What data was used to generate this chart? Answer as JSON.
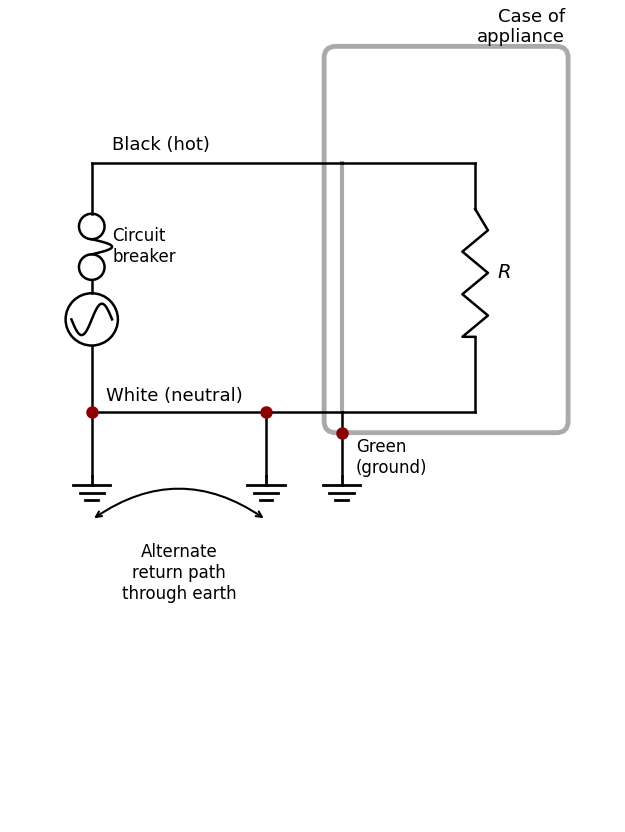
{
  "background_color": "#ffffff",
  "line_color": "#000000",
  "gray_color": "#aaaaaa",
  "dot_color": "#8B0000",
  "text_color": "#000000",
  "case_label": "Case of\nappliance",
  "black_hot_label": "Black (hot)",
  "white_neutral_label": "White (neutral)",
  "circuit_breaker_label": "Circuit\nbreaker",
  "green_ground_label": "Green\n(ground)",
  "alternate_label": "Alternate\nreturn path\nthrough earth",
  "R_label": "R",
  "figsize": [
    6.25,
    8.32
  ],
  "dpi": 100,
  "xlim": [
    0,
    10
  ],
  "ylim": [
    0,
    14
  ]
}
